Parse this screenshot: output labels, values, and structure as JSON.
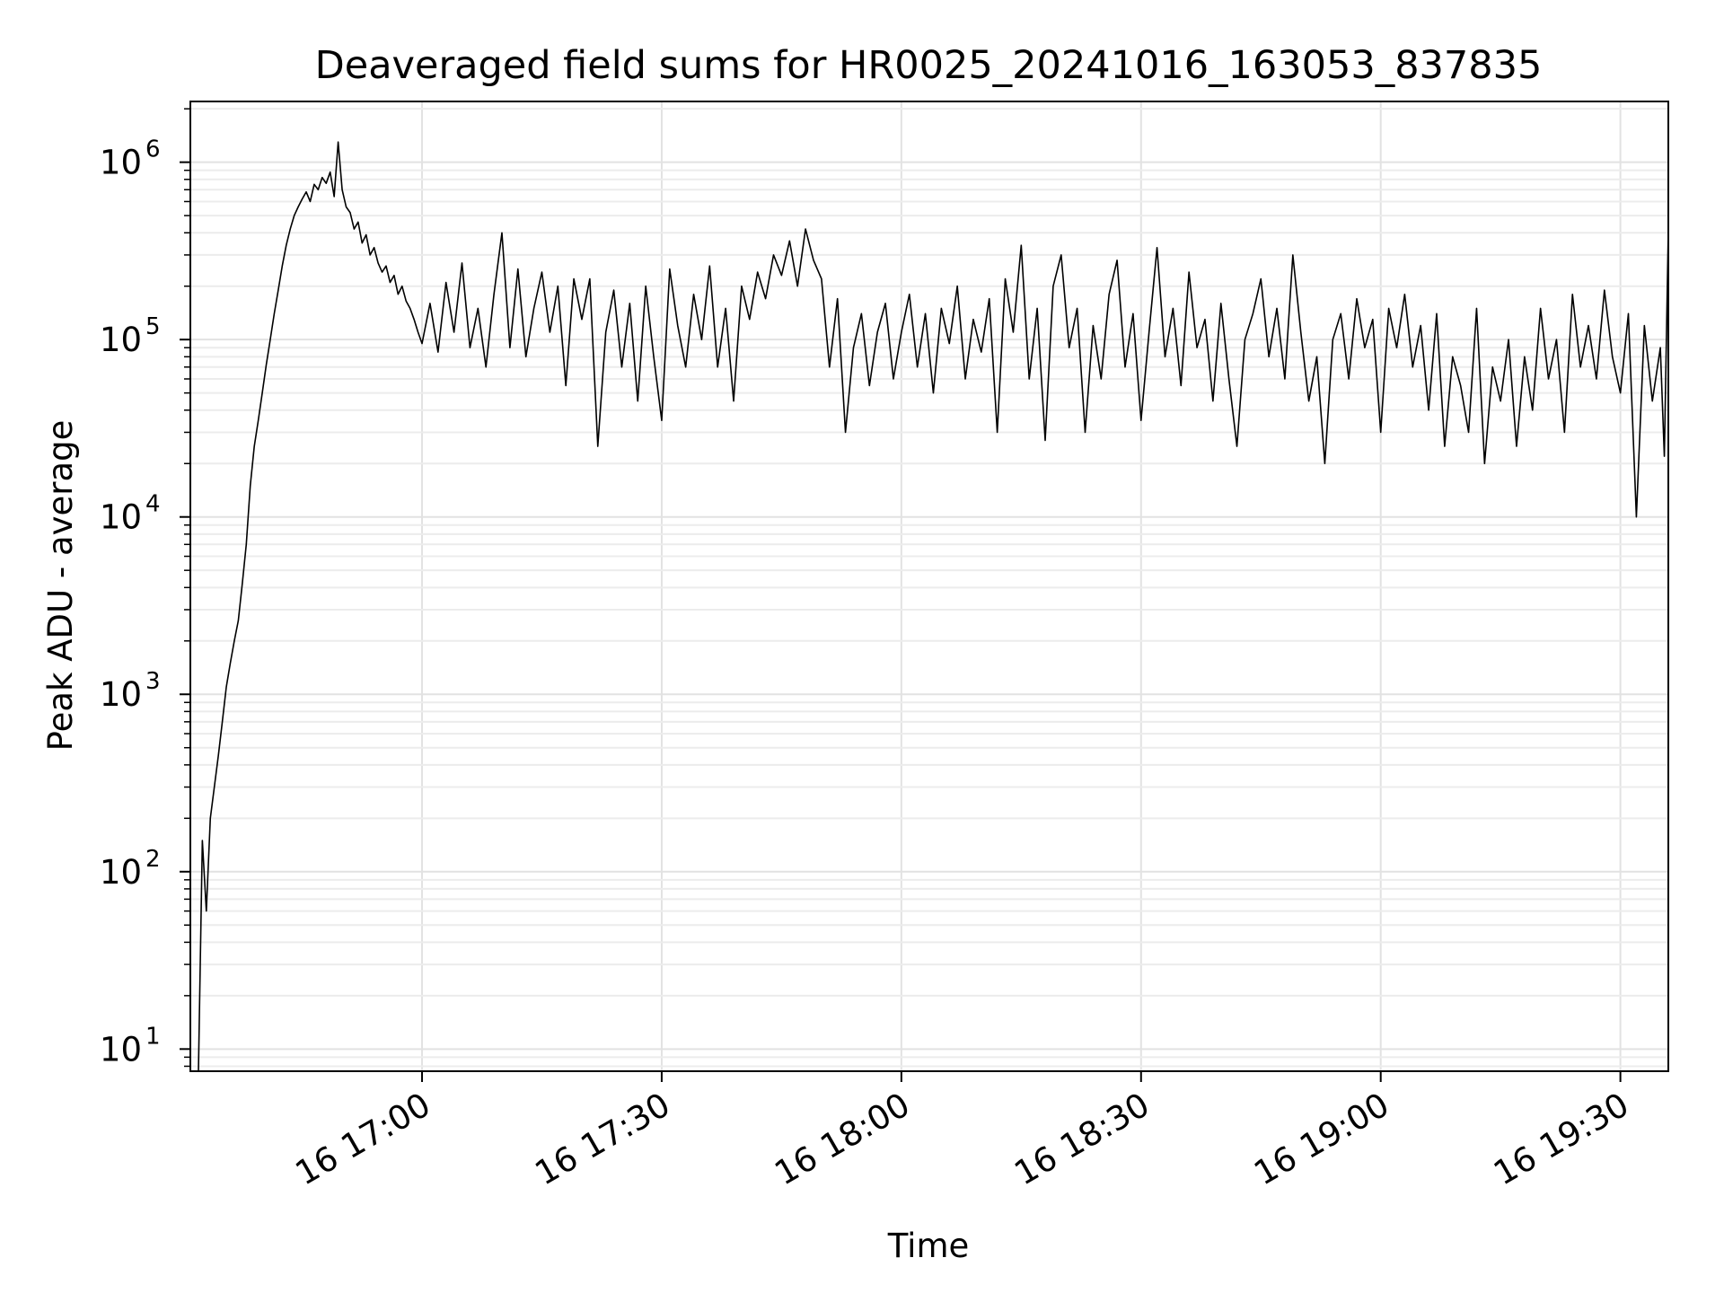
{
  "chart_data": {
    "type": "line",
    "title": "Deaveraged field sums for HR0025_20241016_163053_837835",
    "xlabel": "Time",
    "ylabel": "Peak ADU - average",
    "xlim": [
      "2024-10-16 16:31",
      "2024-10-16 19:36"
    ],
    "ylim": [
      7.5,
      2200000
    ],
    "yscale": "log",
    "grid": "on (major and minor)",
    "x_ticks": [
      {
        "time": "2024-10-16 17:00",
        "label": "16 17:00"
      },
      {
        "time": "2024-10-16 17:30",
        "label": "16 17:30"
      },
      {
        "time": "2024-10-16 18:00",
        "label": "16 18:00"
      },
      {
        "time": "2024-10-16 18:30",
        "label": "16 18:30"
      },
      {
        "time": "2024-10-16 19:00",
        "label": "16 19:00"
      },
      {
        "time": "2024-10-16 19:30",
        "label": "16 19:30"
      }
    ],
    "y_ticks": [
      {
        "value": 10,
        "base": "10",
        "exp": "1"
      },
      {
        "value": 100,
        "base": "10",
        "exp": "2"
      },
      {
        "value": 1000,
        "base": "10",
        "exp": "3"
      },
      {
        "value": 10000,
        "base": "10",
        "exp": "4"
      },
      {
        "value": 100000,
        "base": "10",
        "exp": "5"
      },
      {
        "value": 1000000,
        "base": "10",
        "exp": "6"
      }
    ],
    "series": [
      {
        "color": "#000000",
        "points": [
          [
            "16:32:00",
            7
          ],
          [
            "16:32:30",
            150
          ],
          [
            "16:33:00",
            60
          ],
          [
            "16:33:30",
            200
          ],
          [
            "16:34:00",
            300
          ],
          [
            "16:34:30",
            450
          ],
          [
            "16:35:00",
            700
          ],
          [
            "16:35:30",
            1100
          ],
          [
            "16:36:00",
            1500
          ],
          [
            "16:36:30",
            2000
          ],
          [
            "16:37:00",
            2600
          ],
          [
            "16:37:30",
            4200
          ],
          [
            "16:38:00",
            7000
          ],
          [
            "16:38:30",
            15000
          ],
          [
            "16:39:00",
            25000
          ],
          [
            "16:39:30",
            35000
          ],
          [
            "16:40:00",
            50000
          ],
          [
            "16:40:30",
            72000
          ],
          [
            "16:41:00",
            100000
          ],
          [
            "16:41:30",
            140000
          ],
          [
            "16:42:00",
            190000
          ],
          [
            "16:42:30",
            260000
          ],
          [
            "16:43:00",
            340000
          ],
          [
            "16:43:30",
            420000
          ],
          [
            "16:44:00",
            500000
          ],
          [
            "16:44:30",
            560000
          ],
          [
            "16:45:00",
            620000
          ],
          [
            "16:45:30",
            680000
          ],
          [
            "16:46:00",
            600000
          ],
          [
            "16:46:30",
            750000
          ],
          [
            "16:47:00",
            700000
          ],
          [
            "16:47:30",
            820000
          ],
          [
            "16:48:00",
            760000
          ],
          [
            "16:48:30",
            880000
          ],
          [
            "16:49:00",
            640000
          ],
          [
            "16:49:30",
            1300000
          ],
          [
            "16:50:00",
            700000
          ],
          [
            "16:50:30",
            560000
          ],
          [
            "16:51:00",
            520000
          ],
          [
            "16:51:30",
            420000
          ],
          [
            "16:52:00",
            460000
          ],
          [
            "16:52:30",
            350000
          ],
          [
            "16:53:00",
            390000
          ],
          [
            "16:53:30",
            300000
          ],
          [
            "16:54:00",
            330000
          ],
          [
            "16:54:30",
            270000
          ],
          [
            "16:55:00",
            240000
          ],
          [
            "16:55:30",
            260000
          ],
          [
            "16:56:00",
            210000
          ],
          [
            "16:56:30",
            230000
          ],
          [
            "16:57:00",
            180000
          ],
          [
            "16:57:30",
            200000
          ],
          [
            "16:58:00",
            165000
          ],
          [
            "16:58:30",
            150000
          ],
          [
            "16:59:00",
            130000
          ],
          [
            "16:59:30",
            110000
          ],
          [
            "17:00:00",
            95000
          ],
          [
            "17:01:00",
            160000
          ],
          [
            "17:02:00",
            85000
          ],
          [
            "17:03:00",
            210000
          ],
          [
            "17:04:00",
            110000
          ],
          [
            "17:05:00",
            270000
          ],
          [
            "17:06:00",
            90000
          ],
          [
            "17:07:00",
            150000
          ],
          [
            "17:08:00",
            70000
          ],
          [
            "17:09:00",
            180000
          ],
          [
            "17:10:00",
            400000
          ],
          [
            "17:11:00",
            90000
          ],
          [
            "17:12:00",
            250000
          ],
          [
            "17:13:00",
            80000
          ],
          [
            "17:14:00",
            150000
          ],
          [
            "17:15:00",
            240000
          ],
          [
            "17:16:00",
            110000
          ],
          [
            "17:17:00",
            200000
          ],
          [
            "17:18:00",
            55000
          ],
          [
            "17:19:00",
            220000
          ],
          [
            "17:20:00",
            130000
          ],
          [
            "17:21:00",
            220000
          ],
          [
            "17:22:00",
            25000
          ],
          [
            "17:23:00",
            110000
          ],
          [
            "17:24:00",
            190000
          ],
          [
            "17:25:00",
            70000
          ],
          [
            "17:26:00",
            160000
          ],
          [
            "17:27:00",
            45000
          ],
          [
            "17:28:00",
            200000
          ],
          [
            "17:29:00",
            80000
          ],
          [
            "17:30:00",
            35000
          ],
          [
            "17:31:00",
            250000
          ],
          [
            "17:32:00",
            120000
          ],
          [
            "17:33:00",
            70000
          ],
          [
            "17:34:00",
            180000
          ],
          [
            "17:35:00",
            100000
          ],
          [
            "17:36:00",
            260000
          ],
          [
            "17:37:00",
            70000
          ],
          [
            "17:38:00",
            150000
          ],
          [
            "17:39:00",
            45000
          ],
          [
            "17:40:00",
            200000
          ],
          [
            "17:41:00",
            130000
          ],
          [
            "17:42:00",
            240000
          ],
          [
            "17:43:00",
            170000
          ],
          [
            "17:44:00",
            300000
          ],
          [
            "17:45:00",
            230000
          ],
          [
            "17:46:00",
            360000
          ],
          [
            "17:47:00",
            200000
          ],
          [
            "17:48:00",
            420000
          ],
          [
            "17:49:00",
            280000
          ],
          [
            "17:50:00",
            220000
          ],
          [
            "17:51:00",
            70000
          ],
          [
            "17:52:00",
            170000
          ],
          [
            "17:53:00",
            30000
          ],
          [
            "17:54:00",
            90000
          ],
          [
            "17:55:00",
            140000
          ],
          [
            "17:56:00",
            55000
          ],
          [
            "17:57:00",
            110000
          ],
          [
            "17:58:00",
            160000
          ],
          [
            "17:59:00",
            60000
          ],
          [
            "18:00:00",
            110000
          ],
          [
            "18:01:00",
            180000
          ],
          [
            "18:02:00",
            70000
          ],
          [
            "18:03:00",
            140000
          ],
          [
            "18:04:00",
            50000
          ],
          [
            "18:05:00",
            150000
          ],
          [
            "18:06:00",
            95000
          ],
          [
            "18:07:00",
            200000
          ],
          [
            "18:08:00",
            60000
          ],
          [
            "18:09:00",
            130000
          ],
          [
            "18:10:00",
            85000
          ],
          [
            "18:11:00",
            170000
          ],
          [
            "18:12:00",
            30000
          ],
          [
            "18:13:00",
            220000
          ],
          [
            "18:14:00",
            110000
          ],
          [
            "18:15:00",
            340000
          ],
          [
            "18:16:00",
            60000
          ],
          [
            "18:17:00",
            150000
          ],
          [
            "18:18:00",
            27000
          ],
          [
            "18:19:00",
            200000
          ],
          [
            "18:20:00",
            300000
          ],
          [
            "18:21:00",
            90000
          ],
          [
            "18:22:00",
            150000
          ],
          [
            "18:23:00",
            30000
          ],
          [
            "18:24:00",
            120000
          ],
          [
            "18:25:00",
            60000
          ],
          [
            "18:26:00",
            180000
          ],
          [
            "18:27:00",
            280000
          ],
          [
            "18:28:00",
            70000
          ],
          [
            "18:29:00",
            140000
          ],
          [
            "18:30:00",
            35000
          ],
          [
            "18:31:00",
            110000
          ],
          [
            "18:32:00",
            330000
          ],
          [
            "18:33:00",
            80000
          ],
          [
            "18:34:00",
            150000
          ],
          [
            "18:35:00",
            55000
          ],
          [
            "18:36:00",
            240000
          ],
          [
            "18:37:00",
            90000
          ],
          [
            "18:38:00",
            130000
          ],
          [
            "18:39:00",
            45000
          ],
          [
            "18:40:00",
            160000
          ],
          [
            "18:41:00",
            60000
          ],
          [
            "18:42:00",
            25000
          ],
          [
            "18:43:00",
            100000
          ],
          [
            "18:44:00",
            140000
          ],
          [
            "18:45:00",
            220000
          ],
          [
            "18:46:00",
            80000
          ],
          [
            "18:47:00",
            150000
          ],
          [
            "18:48:00",
            60000
          ],
          [
            "18:49:00",
            300000
          ],
          [
            "18:50:00",
            110000
          ],
          [
            "18:51:00",
            45000
          ],
          [
            "18:52:00",
            80000
          ],
          [
            "18:53:00",
            20000
          ],
          [
            "18:54:00",
            100000
          ],
          [
            "18:55:00",
            140000
          ],
          [
            "18:56:00",
            60000
          ],
          [
            "18:57:00",
            170000
          ],
          [
            "18:58:00",
            90000
          ],
          [
            "18:59:00",
            130000
          ],
          [
            "19:00:00",
            30000
          ],
          [
            "19:01:00",
            150000
          ],
          [
            "19:02:00",
            90000
          ],
          [
            "19:03:00",
            180000
          ],
          [
            "19:04:00",
            70000
          ],
          [
            "19:05:00",
            120000
          ],
          [
            "19:06:00",
            40000
          ],
          [
            "19:07:00",
            140000
          ],
          [
            "19:08:00",
            25000
          ],
          [
            "19:09:00",
            80000
          ],
          [
            "19:10:00",
            55000
          ],
          [
            "19:11:00",
            30000
          ],
          [
            "19:12:00",
            150000
          ],
          [
            "19:13:00",
            20000
          ],
          [
            "19:14:00",
            70000
          ],
          [
            "19:15:00",
            45000
          ],
          [
            "19:16:00",
            100000
          ],
          [
            "19:17:00",
            25000
          ],
          [
            "19:18:00",
            80000
          ],
          [
            "19:19:00",
            40000
          ],
          [
            "19:20:00",
            150000
          ],
          [
            "19:21:00",
            60000
          ],
          [
            "19:22:00",
            100000
          ],
          [
            "19:23:00",
            30000
          ],
          [
            "19:24:00",
            180000
          ],
          [
            "19:25:00",
            70000
          ],
          [
            "19:26:00",
            120000
          ],
          [
            "19:27:00",
            60000
          ],
          [
            "19:28:00",
            190000
          ],
          [
            "19:29:00",
            80000
          ],
          [
            "19:30:00",
            50000
          ],
          [
            "19:31:00",
            140000
          ],
          [
            "19:32:00",
            10000
          ],
          [
            "19:33:00",
            120000
          ],
          [
            "19:34:00",
            45000
          ],
          [
            "19:35:00",
            90000
          ],
          [
            "19:35:30",
            22000
          ],
          [
            "19:36:00",
            420000
          ]
        ]
      }
    ]
  }
}
